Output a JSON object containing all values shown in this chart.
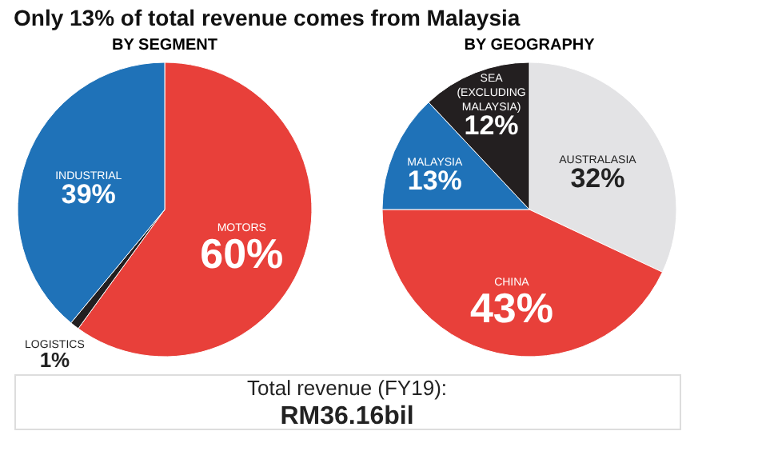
{
  "chart_data": [
    {
      "type": "pie",
      "title": "Only 13% of total revenue comes from Malaysia",
      "subtitle": "BY SEGMENT",
      "categories": [
        "MOTORS",
        "LOGISTICS",
        "INDUSTRIAL"
      ],
      "values": [
        60,
        1,
        39
      ],
      "value_labels": [
        "60%",
        "1%",
        "39%"
      ],
      "colors": [
        "#e8403a",
        "#231f20",
        "#1f72b8"
      ],
      "annotations": [
        "Total revenue (FY19):",
        "RM36.16bil"
      ]
    },
    {
      "type": "pie",
      "subtitle": "BY GEOGRAPHY",
      "categories": [
        "AUSTRALASIA",
        "CHINA",
        "MALAYSIA",
        "SEA (EXCLUDING MALAYSIA)"
      ],
      "values": [
        32,
        43,
        13,
        12
      ],
      "value_labels": [
        "32%",
        "43%",
        "13%",
        "12%"
      ],
      "colors": [
        "#e3e3e5",
        "#e8403a",
        "#1f72b8",
        "#231f20"
      ]
    }
  ]
}
